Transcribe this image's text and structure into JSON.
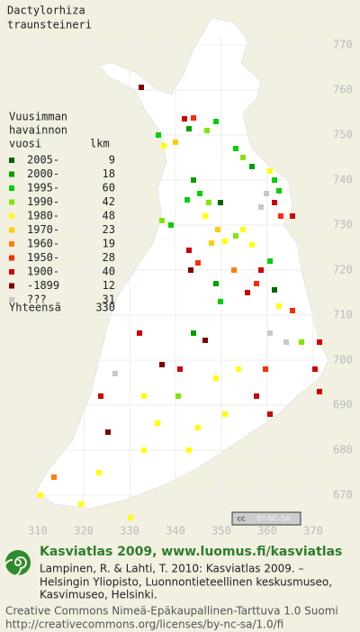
{
  "title": [
    "Dactylorhiza",
    "traunsteineri"
  ],
  "legend": {
    "header": [
      "Vuusimman",
      "havainnon",
      "vuosi"
    ],
    "count_header": "lkm",
    "items": [
      {
        "label": "2005-",
        "count": 9,
        "color": "#006400"
      },
      {
        "label": "2000-",
        "count": 18,
        "color": "#00a000"
      },
      {
        "label": "1995-",
        "count": 60,
        "color": "#00d000"
      },
      {
        "label": "1990-",
        "count": 42,
        "color": "#80e800"
      },
      {
        "label": "1980-",
        "count": 48,
        "color": "#ffff00"
      },
      {
        "label": "1970-",
        "count": 23,
        "color": "#ffcc00"
      },
      {
        "label": "1960-",
        "count": 19,
        "color": "#ff8000"
      },
      {
        "label": "1950-",
        "count": 28,
        "color": "#ff2a00"
      },
      {
        "label": "1900-",
        "count": 40,
        "color": "#cc0000"
      },
      {
        "label": "-1899",
        "count": 12,
        "color": "#800000"
      },
      {
        "label": "???",
        "count": 31,
        "color": "#c8c8c8"
      }
    ],
    "total_label": "Yhteensä",
    "total": 330
  },
  "grid": {
    "northing": [
      770,
      760,
      750,
      740,
      730,
      720,
      710,
      700,
      690,
      680,
      670
    ],
    "easting": [
      310,
      320,
      330,
      340,
      350,
      360,
      370
    ]
  },
  "badge": {
    "icon": "cc",
    "text": "BY-NC-SA"
  },
  "footer": {
    "title": "Kasviatlas 2009, www.luomus.fi/kasviatlas",
    "citation": [
      "Lampinen, R. & Lahti, T. 2010: Kasviatlas 2009. –",
      "Helsingin Yliopisto, Luonnontieteellinen keskusmuseo,",
      "Kasvimuseo, Helsinki."
    ],
    "license": [
      "Creative Commons Nimeä-Epäkaupallinen-Tarttuva 1.0 Suomi",
      "http://creativecommons.org/licenses/by-nc-sa/1.0/fi"
    ]
  }
}
